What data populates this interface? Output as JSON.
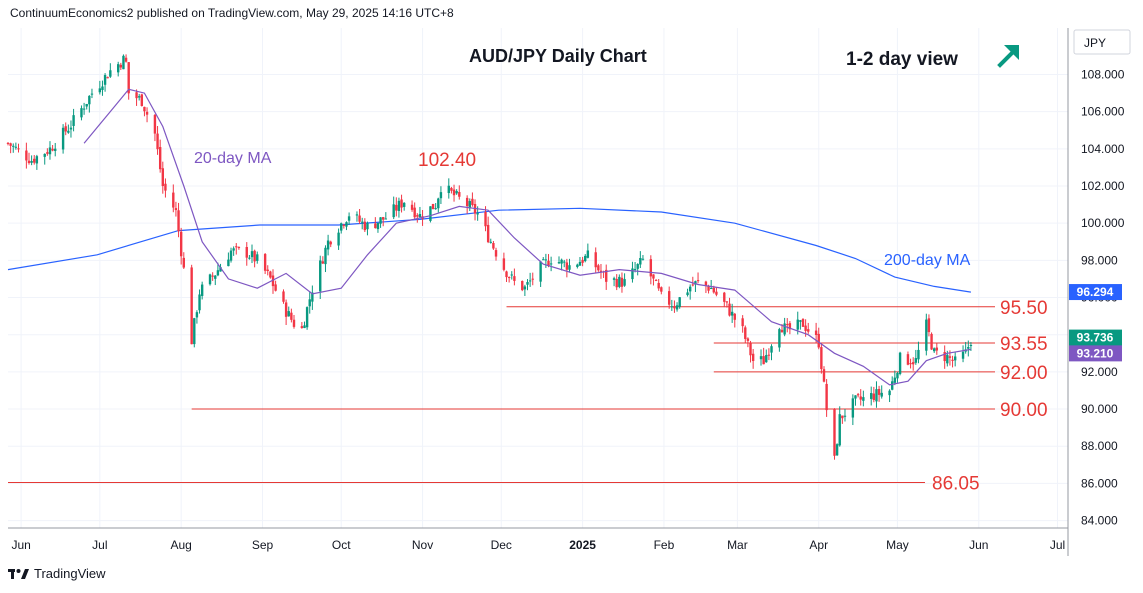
{
  "header": {
    "published_line": "ContinuumEconomics2 published on TradingView.com, May 29, 2025 14:16 UTC+8"
  },
  "footer": {
    "brand": "TradingView",
    "logo_icon": "tradingview-logo-icon"
  },
  "colors": {
    "candle_up": "#089981",
    "candle_down": "#f23645",
    "ma20": "#7e57c2",
    "ma200": "#2962ff",
    "level_line": "#e53935",
    "level_text": "#e53935",
    "arrow": "#089981",
    "price_badge_up": "#089981",
    "ma20_badge": "#7e57c2",
    "ma200_badge": "#2962ff"
  },
  "annotations": {
    "title": "AUD/JPY Daily Chart",
    "view": "1-2 day view",
    "view_icon": "up-right-arrow-icon",
    "ma20_label": "20-day MA",
    "ma200_label": "200-day MA",
    "peak_label": "102.40"
  },
  "chart_data": {
    "type": "candlestick",
    "currency": "JPY",
    "y_axis": {
      "ticks": [
        "108.000",
        "106.000",
        "104.000",
        "102.000",
        "100.000",
        "98.000",
        "96.000",
        "94.000",
        "92.000",
        "90.000",
        "88.000",
        "86.000",
        "84.000"
      ],
      "ylim": [
        83.6,
        110.5
      ]
    },
    "x_axis": {
      "labels": [
        "Jun",
        "Jul",
        "Aug",
        "Sep",
        "Oct",
        "Nov",
        "Dec",
        "2025",
        "Feb",
        "Mar",
        "Apr",
        "May",
        "Jun",
        "Jul"
      ],
      "xlim": [
        "2024-05-27",
        "2025-07-05"
      ]
    },
    "price_badges": [
      {
        "label": "96.294",
        "value": 96.294,
        "series": "200-day MA"
      },
      {
        "label": "93.736",
        "value": 93.736,
        "series": "price"
      },
      {
        "label": "93.210",
        "value": 93.21,
        "series": "20-day MA"
      }
    ],
    "levels": [
      {
        "label": "95.50",
        "value": 95.5,
        "start": "2024-12-03"
      },
      {
        "label": "93.55",
        "value": 93.55,
        "start": "2025-02-20"
      },
      {
        "label": "92.00",
        "value": 92.0,
        "start": "2025-02-20"
      },
      {
        "label": "90.00",
        "value": 90.0,
        "start": "2024-08-05"
      },
      {
        "label": "86.05",
        "value": 86.05,
        "start": "2024-05-27"
      }
    ],
    "price_path": [
      [
        "2024-05-27",
        104.3
      ],
      [
        "2024-06-05",
        103.4
      ],
      [
        "2024-06-12",
        104.0
      ],
      [
        "2024-06-20",
        105.3
      ],
      [
        "2024-06-28",
        107.0
      ],
      [
        "2024-07-05",
        108.2
      ],
      [
        "2024-07-10",
        108.8
      ],
      [
        "2024-07-11",
        108.6
      ],
      [
        "2024-07-12",
        107.0
      ],
      [
        "2024-07-17",
        106.6
      ],
      [
        "2024-07-22",
        104.8
      ],
      [
        "2024-07-25",
        102.0
      ],
      [
        "2024-07-30",
        100.6
      ],
      [
        "2024-08-02",
        97.5
      ],
      [
        "2024-08-05",
        93.7
      ],
      [
        "2024-08-08",
        96.3
      ],
      [
        "2024-08-14",
        97.3
      ],
      [
        "2024-08-20",
        98.5
      ],
      [
        "2024-08-26",
        98.4
      ],
      [
        "2024-08-30",
        98.0
      ],
      [
        "2024-09-04",
        97.0
      ],
      [
        "2024-09-09",
        95.5
      ],
      [
        "2024-09-13",
        94.6
      ],
      [
        "2024-09-16",
        94.3
      ],
      [
        "2024-09-20",
        96.5
      ],
      [
        "2024-09-26",
        99.0
      ],
      [
        "2024-09-30",
        99.8
      ],
      [
        "2024-10-04",
        100.5
      ],
      [
        "2024-10-11",
        99.8
      ],
      [
        "2024-10-18",
        100.3
      ],
      [
        "2024-10-25",
        101.2
      ],
      [
        "2024-10-31",
        100.4
      ],
      [
        "2024-11-06",
        101.0
      ],
      [
        "2024-11-08",
        102.0
      ],
      [
        "2024-11-13",
        101.5
      ],
      [
        "2024-11-18",
        101.0
      ],
      [
        "2024-11-22",
        100.5
      ],
      [
        "2024-11-26",
        99.3
      ],
      [
        "2024-12-02",
        97.6
      ],
      [
        "2024-12-06",
        96.8
      ],
      [
        "2024-12-10",
        96.5
      ],
      [
        "2024-12-16",
        97.6
      ],
      [
        "2024-12-20",
        98.1
      ],
      [
        "2024-12-27",
        97.7
      ],
      [
        "2025-01-03",
        98.2
      ],
      [
        "2025-01-10",
        97.0
      ],
      [
        "2025-01-17",
        96.8
      ],
      [
        "2025-01-24",
        98.0
      ],
      [
        "2025-01-31",
        96.0
      ],
      [
        "2025-02-05",
        95.6
      ],
      [
        "2025-02-11",
        96.6
      ],
      [
        "2025-02-14",
        96.8
      ],
      [
        "2025-02-19",
        96.5
      ],
      [
        "2025-02-25",
        95.5
      ],
      [
        "2025-03-03",
        94.2
      ],
      [
        "2025-03-07",
        92.6
      ],
      [
        "2025-03-11",
        92.6
      ],
      [
        "2025-03-17",
        94.6
      ],
      [
        "2025-03-20",
        94.2
      ],
      [
        "2025-03-26",
        94.6
      ],
      [
        "2025-04-01",
        93.6
      ],
      [
        "2025-04-04",
        90.0
      ],
      [
        "2025-04-07",
        87.2
      ],
      [
        "2025-04-09",
        89.5
      ],
      [
        "2025-04-15",
        90.4
      ],
      [
        "2025-04-21",
        90.7
      ],
      [
        "2025-04-28",
        91.0
      ],
      [
        "2025-05-02",
        92.7
      ],
      [
        "2025-05-08",
        92.6
      ],
      [
        "2025-05-12",
        94.5
      ],
      [
        "2025-05-15",
        93.0
      ],
      [
        "2025-05-20",
        92.8
      ],
      [
        "2025-05-23",
        92.5
      ],
      [
        "2025-05-27",
        93.0
      ],
      [
        "2025-05-29",
        93.736
      ]
    ],
    "ma20_path": [
      [
        "2024-06-25",
        104.3
      ],
      [
        "2024-07-05",
        106.0
      ],
      [
        "2024-07-12",
        107.2
      ],
      [
        "2024-07-18",
        107.0
      ],
      [
        "2024-07-25",
        105.2
      ],
      [
        "2024-08-02",
        102.0
      ],
      [
        "2024-08-09",
        99.0
      ],
      [
        "2024-08-19",
        97.0
      ],
      [
        "2024-08-30",
        96.5
      ],
      [
        "2024-09-10",
        97.3
      ],
      [
        "2024-09-20",
        96.2
      ],
      [
        "2024-10-01",
        96.5
      ],
      [
        "2024-10-11",
        98.3
      ],
      [
        "2024-10-22",
        100.0
      ],
      [
        "2024-11-04",
        100.4
      ],
      [
        "2024-11-15",
        100.9
      ],
      [
        "2024-11-26",
        100.7
      ],
      [
        "2024-12-06",
        99.2
      ],
      [
        "2024-12-17",
        97.8
      ],
      [
        "2024-12-31",
        97.2
      ],
      [
        "2025-01-15",
        97.5
      ],
      [
        "2025-01-31",
        97.3
      ],
      [
        "2025-02-14",
        96.7
      ],
      [
        "2025-02-28",
        96.4
      ],
      [
        "2025-03-14",
        94.7
      ],
      [
        "2025-03-28",
        94.0
      ],
      [
        "2025-04-07",
        93.0
      ],
      [
        "2025-04-18",
        92.3
      ],
      [
        "2025-04-28",
        91.3
      ],
      [
        "2025-05-05",
        91.5
      ],
      [
        "2025-05-12",
        92.6
      ],
      [
        "2025-05-20",
        93.0
      ],
      [
        "2025-05-29",
        93.21
      ]
    ],
    "ma200_path": [
      [
        "2024-05-27",
        97.5
      ],
      [
        "2024-06-30",
        98.3
      ],
      [
        "2024-07-31",
        99.6
      ],
      [
        "2024-08-31",
        99.9
      ],
      [
        "2024-09-30",
        99.9
      ],
      [
        "2024-10-31",
        100.2
      ],
      [
        "2024-11-30",
        100.7
      ],
      [
        "2024-12-31",
        100.8
      ],
      [
        "2025-01-31",
        100.6
      ],
      [
        "2025-02-28",
        100.0
      ],
      [
        "2025-03-31",
        98.8
      ],
      [
        "2025-04-15",
        98.1
      ],
      [
        "2025-04-30",
        97.1
      ],
      [
        "2025-05-15",
        96.6
      ],
      [
        "2025-05-29",
        96.294
      ]
    ]
  }
}
